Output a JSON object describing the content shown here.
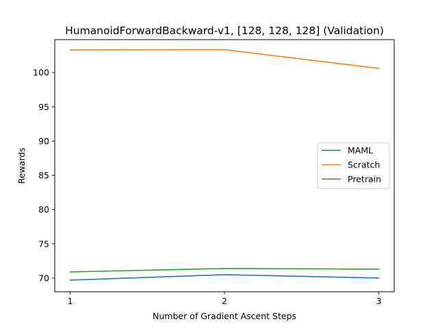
{
  "chart_data": {
    "type": "line",
    "title": "HumanoidForwardBackward-v1, [128, 128, 128] (Validation)",
    "xlabel": "Number of Gradient Ascent Steps",
    "ylabel": "Rewards",
    "x": [
      1,
      2,
      3
    ],
    "x_ticks": [
      1,
      2,
      3
    ],
    "y_ticks": [
      70,
      75,
      80,
      85,
      90,
      95,
      100
    ],
    "xlim": [
      0.9,
      3.1
    ],
    "ylim": [
      68.0,
      104.8
    ],
    "grid": false,
    "legend_position": "center-right",
    "series": [
      {
        "name": "MAML",
        "color": "#1f77b4",
        "values": [
          69.7,
          70.5,
          70.0
        ]
      },
      {
        "name": "Scratch",
        "color": "#ff7f0e",
        "values": [
          103.3,
          103.35,
          100.6
        ]
      },
      {
        "name": "Pretrain",
        "color": "#2ca02c",
        "values": [
          70.9,
          71.4,
          71.3
        ]
      }
    ]
  }
}
